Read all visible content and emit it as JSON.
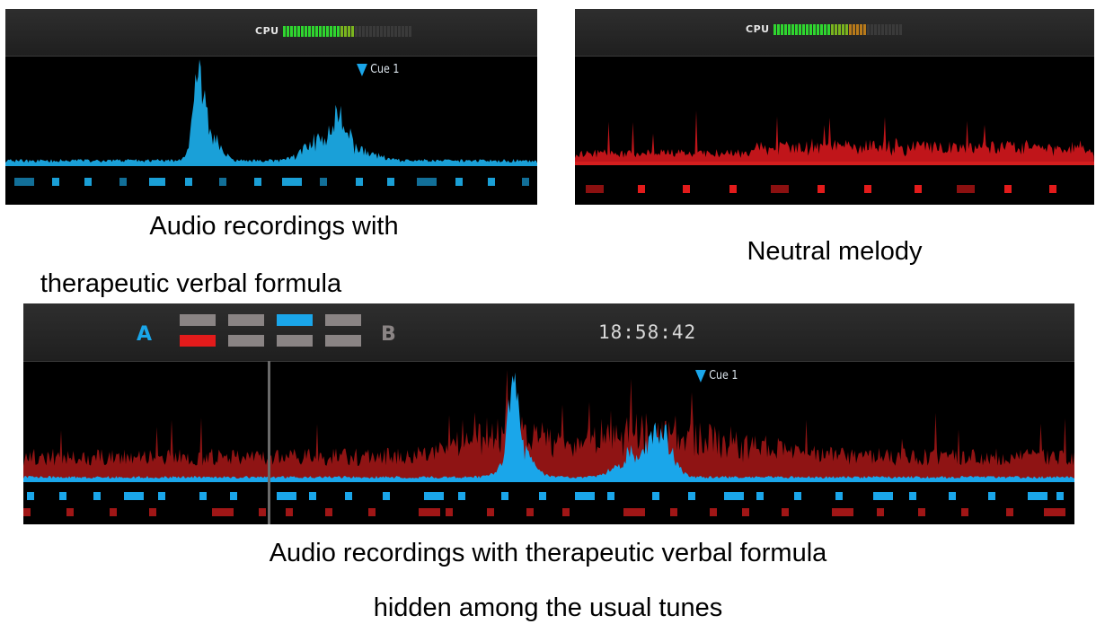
{
  "panel1": {
    "cpu_label": "CPU",
    "cpu_level": 0.55,
    "cue_label": "Cue 1",
    "wave_color": "#1aa0d8",
    "caption_lines": [
      "Audio recordings with",
      "therapeutic verbal formula"
    ]
  },
  "panel2": {
    "cpu_label": "CPU",
    "cpu_level": 0.72,
    "wave_color": "#c0151a",
    "caption": "Neutral melody"
  },
  "panel3": {
    "deck_a": "A",
    "deck_b": "B",
    "clock": "18:58:42",
    "cue_label": "Cue 1",
    "accent_blue": "#1aa6ea",
    "accent_red": "#e31b1b",
    "caption_lines": [
      "Audio recordings with therapeutic verbal formula",
      "hidden among the usual tunes"
    ]
  },
  "icons": [
    "cue-marker-icon"
  ]
}
